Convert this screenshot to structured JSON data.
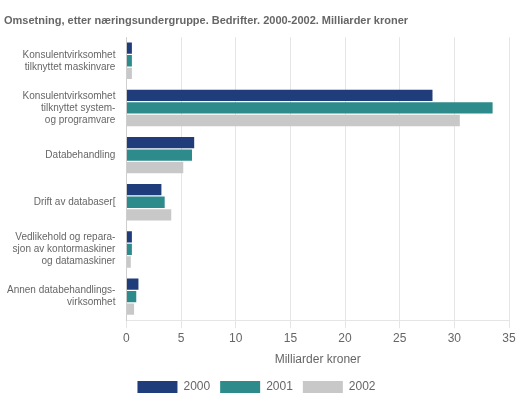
{
  "chart_data": {
    "type": "bar",
    "orientation": "horizontal",
    "title": "Omsetning, etter næringsundergruppe. Bedrifter. 2000-2002. Milliarder kroner",
    "categories": [
      "Annen databehandlings-\nvirksomhet",
      "Vedlikehold og repara-\nsjon av kontormaskiner\nog datamaskiner",
      "Drift av databaser[",
      "Databehandling",
      "Konsulentvirksomhet\ntilknyttet system-\nog programvare",
      "Konsulentvirksomhet\ntilknyttet maskinvare"
    ],
    "series": [
      {
        "name": "2000",
        "color": "#1f3d7a",
        "values": [
          1.1,
          0.5,
          3.2,
          6.2,
          28.0,
          0.5
        ]
      },
      {
        "name": "2001",
        "color": "#2e8b8b",
        "values": [
          0.9,
          0.5,
          3.5,
          6.0,
          33.5,
          0.5
        ]
      },
      {
        "name": "2002",
        "color": "#c8c8c8",
        "values": [
          0.7,
          0.4,
          4.1,
          5.2,
          30.5,
          0.5
        ]
      }
    ],
    "xlabel": "Milliarder kroner",
    "xlim": [
      0,
      35
    ],
    "xticks": [
      0,
      5,
      10,
      15,
      20,
      25,
      30,
      35
    ],
    "grid": true,
    "legend": "bottom"
  }
}
